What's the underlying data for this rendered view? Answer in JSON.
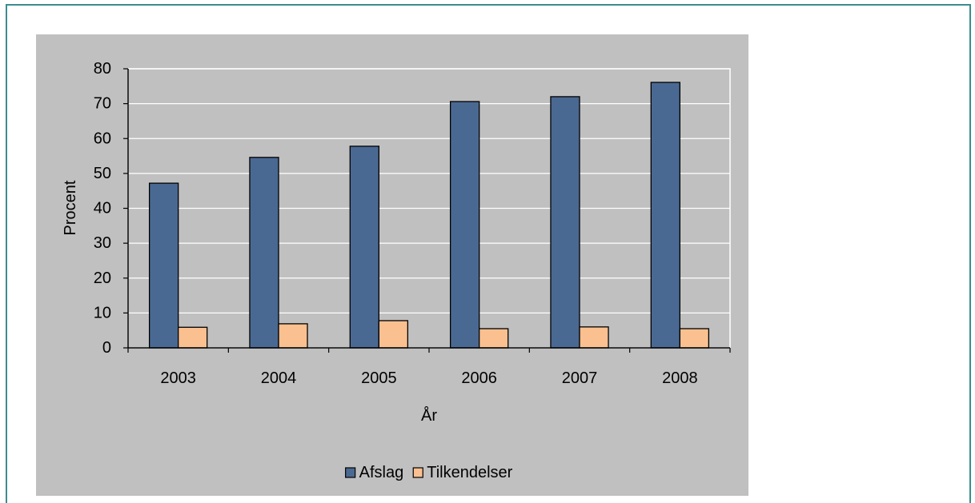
{
  "colors": {
    "frame": "#3b8d8f",
    "chart_area": "#c0c0c0",
    "gridline": "#ffffff",
    "axis": "#000000"
  },
  "chart_data": {
    "type": "bar",
    "categories": [
      "2003",
      "2004",
      "2005",
      "2006",
      "2007",
      "2008"
    ],
    "series": [
      {
        "name": "Afslag",
        "values": [
          47.2,
          54.6,
          57.8,
          70.6,
          72.0,
          76.1
        ],
        "color": "#4a6992"
      },
      {
        "name": "Tilkendelser",
        "values": [
          5.9,
          6.9,
          7.8,
          5.5,
          6.0,
          5.5
        ],
        "color": "#fac08f"
      }
    ],
    "xlabel": "År",
    "ylabel": "Procent",
    "ylim": [
      0,
      80
    ],
    "yticks": [
      0,
      10,
      20,
      30,
      40,
      50,
      60,
      70,
      80
    ],
    "grid": true,
    "legend": "bottom"
  }
}
